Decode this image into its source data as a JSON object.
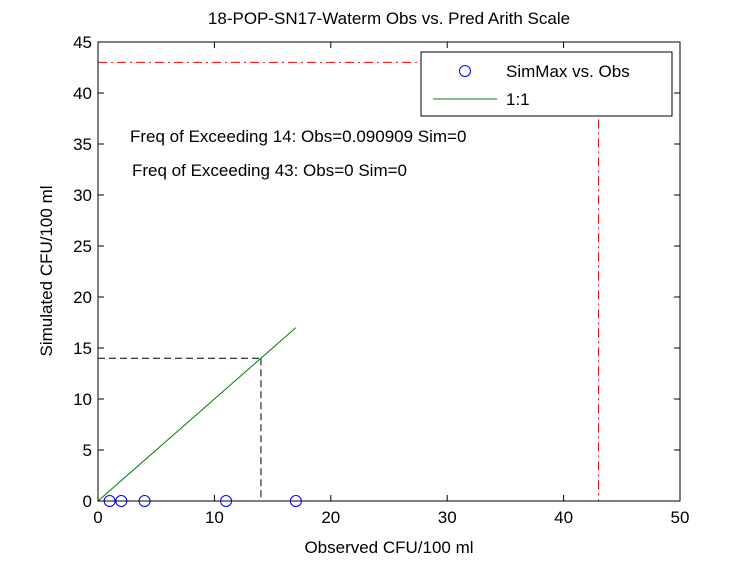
{
  "chart_data": {
    "type": "scatter",
    "title": "18-POP-SN17-Waterm Obs vs. Pred Arith Scale",
    "xlabel": "Observed CFU/100 ml",
    "ylabel": "Simulated CFU/100 ml",
    "xlim": [
      0,
      50
    ],
    "ylim": [
      0,
      45
    ],
    "xticks": [
      0,
      10,
      20,
      30,
      40,
      50
    ],
    "yticks": [
      0,
      5,
      10,
      15,
      20,
      25,
      30,
      35,
      40,
      45
    ],
    "grid": false,
    "legend_position": "top-right",
    "series": [
      {
        "name": "SimMax vs. Obs",
        "marker": "circle",
        "color": "#0000ff",
        "x": [
          1,
          2,
          4,
          11,
          17
        ],
        "y": [
          0,
          0,
          0,
          0,
          0
        ]
      },
      {
        "name": "1:1",
        "line": "solid",
        "color": "#008000",
        "x": [
          0,
          17
        ],
        "y": [
          0,
          17
        ]
      }
    ],
    "reference_lines": [
      {
        "threshold": 14,
        "color": "#000000",
        "style": "dashed"
      },
      {
        "threshold": 43,
        "color": "#ff0000",
        "style": "dashdot"
      }
    ],
    "annotations": [
      "Freq of Exceeding 14: Obs=0.090909 Sim=0",
      "Freq of Exceeding 43: Obs=0 Sim=0"
    ]
  }
}
